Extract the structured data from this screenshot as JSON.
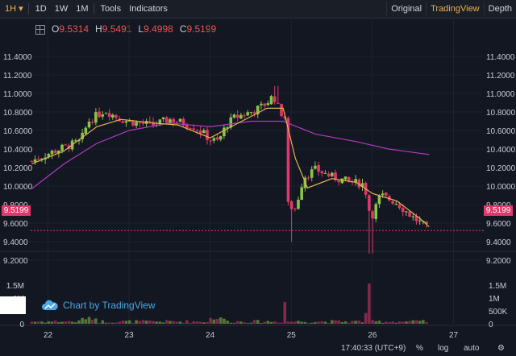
{
  "toolbar": {
    "interval": "1H",
    "interval_arrow": "▾",
    "items": [
      "1D",
      "1W",
      "1M",
      "Tools",
      "Indicators"
    ],
    "views": [
      "Original",
      "TradingView",
      "Depth"
    ],
    "active_view": "TradingView"
  },
  "ohlc": {
    "o_label": "O",
    "o": "9.5314",
    "h_label": "H",
    "h": "9.5491",
    "l_label": "L",
    "l": "9.4998",
    "c_label": "C",
    "c": "9.5199"
  },
  "price_axis_labels": [
    "11.4000",
    "11.2000",
    "11.0000",
    "10.8000",
    "10.6000",
    "10.4000",
    "10.2000",
    "10.0000",
    "9.8000",
    "9.6000",
    "9.4000",
    "9.2000"
  ],
  "current_price": "9.5199",
  "volume_axis_labels": [
    "1.5M",
    "1M",
    "500K",
    "0"
  ],
  "time_axis_labels": [
    "22",
    "23",
    "24",
    "25",
    "26",
    "27"
  ],
  "branding": {
    "text": "Chart by TradingView",
    "icon": "tradingview-cloud-icon"
  },
  "status": {
    "time": "17:40:33 (UTC+9)",
    "percent": "%",
    "log": "log",
    "auto": "auto",
    "settings_icon": "gear-icon"
  },
  "colors": {
    "up": "#8bc34a",
    "down": "#e0386a",
    "ma_fast": "#e6b34d",
    "ma_slow": "#b03abf",
    "background": "#131722",
    "brand": "#4aa8e8"
  },
  "chart_data": {
    "type": "candlestick",
    "price_range": [
      9.0,
      11.5
    ],
    "volume_range": [
      0,
      1.75
    ],
    "volume_unit": "M",
    "time_range": [
      21.8,
      27.6
    ],
    "anchors": [
      [
        21.8,
        10.27
      ],
      [
        22.0,
        10.35
      ],
      [
        22.2,
        10.42
      ],
      [
        22.4,
        10.48
      ],
      [
        22.5,
        10.7
      ],
      [
        22.6,
        10.76
      ],
      [
        22.7,
        10.82
      ],
      [
        22.9,
        10.72
      ],
      [
        23.1,
        10.68
      ],
      [
        23.3,
        10.66
      ],
      [
        23.5,
        10.72
      ],
      [
        23.6,
        10.7
      ],
      [
        23.8,
        10.64
      ],
      [
        23.9,
        10.58
      ],
      [
        24.0,
        10.5
      ],
      [
        24.1,
        10.48
      ],
      [
        24.2,
        10.66
      ],
      [
        24.3,
        10.74
      ],
      [
        24.5,
        10.8
      ],
      [
        24.6,
        10.84
      ],
      [
        24.7,
        10.9
      ],
      [
        24.78,
        10.98
      ],
      [
        24.85,
        10.82
      ],
      [
        24.92,
        10.74
      ],
      [
        24.95,
        9.8
      ],
      [
        25.05,
        9.75
      ],
      [
        25.15,
        10.1
      ],
      [
        25.3,
        10.18
      ],
      [
        25.5,
        10.1
      ],
      [
        25.7,
        10.05
      ],
      [
        25.9,
        10.02
      ],
      [
        25.98,
        9.65
      ],
      [
        26.1,
        9.9
      ],
      [
        26.3,
        9.82
      ],
      [
        26.5,
        9.66
      ],
      [
        26.6,
        9.6
      ],
      [
        26.7,
        9.52
      ]
    ],
    "volume_spikes": [
      [
        24.92,
        0.84
      ],
      [
        25.97,
        1.56
      ],
      [
        25.92,
        0.42
      ]
    ],
    "ma_fast": [
      [
        21.8,
        10.24
      ],
      [
        22.2,
        10.38
      ],
      [
        22.6,
        10.64
      ],
      [
        22.9,
        10.72
      ],
      [
        23.3,
        10.68
      ],
      [
        23.6,
        10.66
      ],
      [
        24.0,
        10.52
      ],
      [
        24.3,
        10.66
      ],
      [
        24.7,
        10.84
      ],
      [
        24.9,
        10.84
      ],
      [
        25.05,
        10.3
      ],
      [
        25.2,
        9.98
      ],
      [
        25.5,
        10.08
      ],
      [
        25.8,
        10.04
      ],
      [
        26.0,
        9.92
      ],
      [
        26.3,
        9.84
      ],
      [
        26.6,
        9.64
      ],
      [
        26.7,
        9.56
      ]
    ],
    "ma_slow": [
      [
        21.8,
        9.97
      ],
      [
        22.2,
        10.24
      ],
      [
        22.6,
        10.46
      ],
      [
        23.0,
        10.6
      ],
      [
        23.5,
        10.68
      ],
      [
        24.0,
        10.64
      ],
      [
        24.5,
        10.7
      ],
      [
        24.9,
        10.7
      ],
      [
        25.3,
        10.56
      ],
      [
        25.8,
        10.48
      ],
      [
        26.2,
        10.4
      ],
      [
        26.7,
        10.34
      ]
    ]
  }
}
